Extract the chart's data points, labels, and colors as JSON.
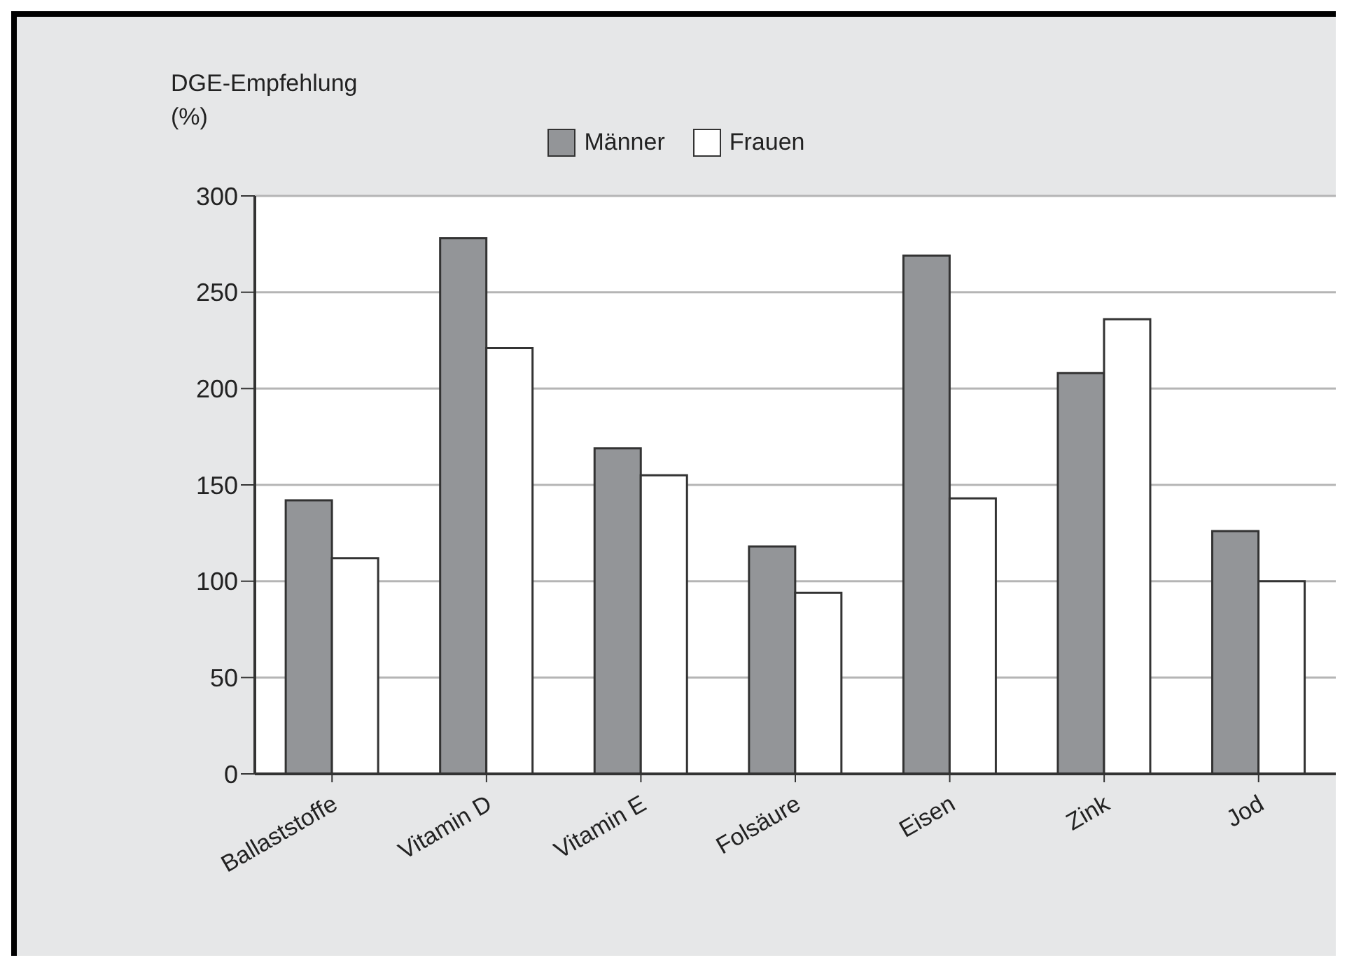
{
  "chart_data": {
    "type": "bar",
    "ylabel": "DGE-Empfehlung\n(%)",
    "categories": [
      "Ballaststoffe",
      "Vitamin D",
      "Vitamin E",
      "Folsäure",
      "Eisen",
      "Zink",
      "Jod"
    ],
    "series": [
      {
        "name": "Männer",
        "color": "#939598",
        "values": [
          142,
          278,
          169,
          118,
          269,
          208,
          126
        ]
      },
      {
        "name": "Frauen",
        "color": "#ffffff",
        "values": [
          112,
          221,
          155,
          94,
          143,
          236,
          100
        ]
      }
    ],
    "ylim": [
      0,
      300
    ],
    "yticks": [
      0,
      50,
      100,
      150,
      200,
      250,
      300
    ],
    "grid": "y",
    "legend": "top"
  }
}
